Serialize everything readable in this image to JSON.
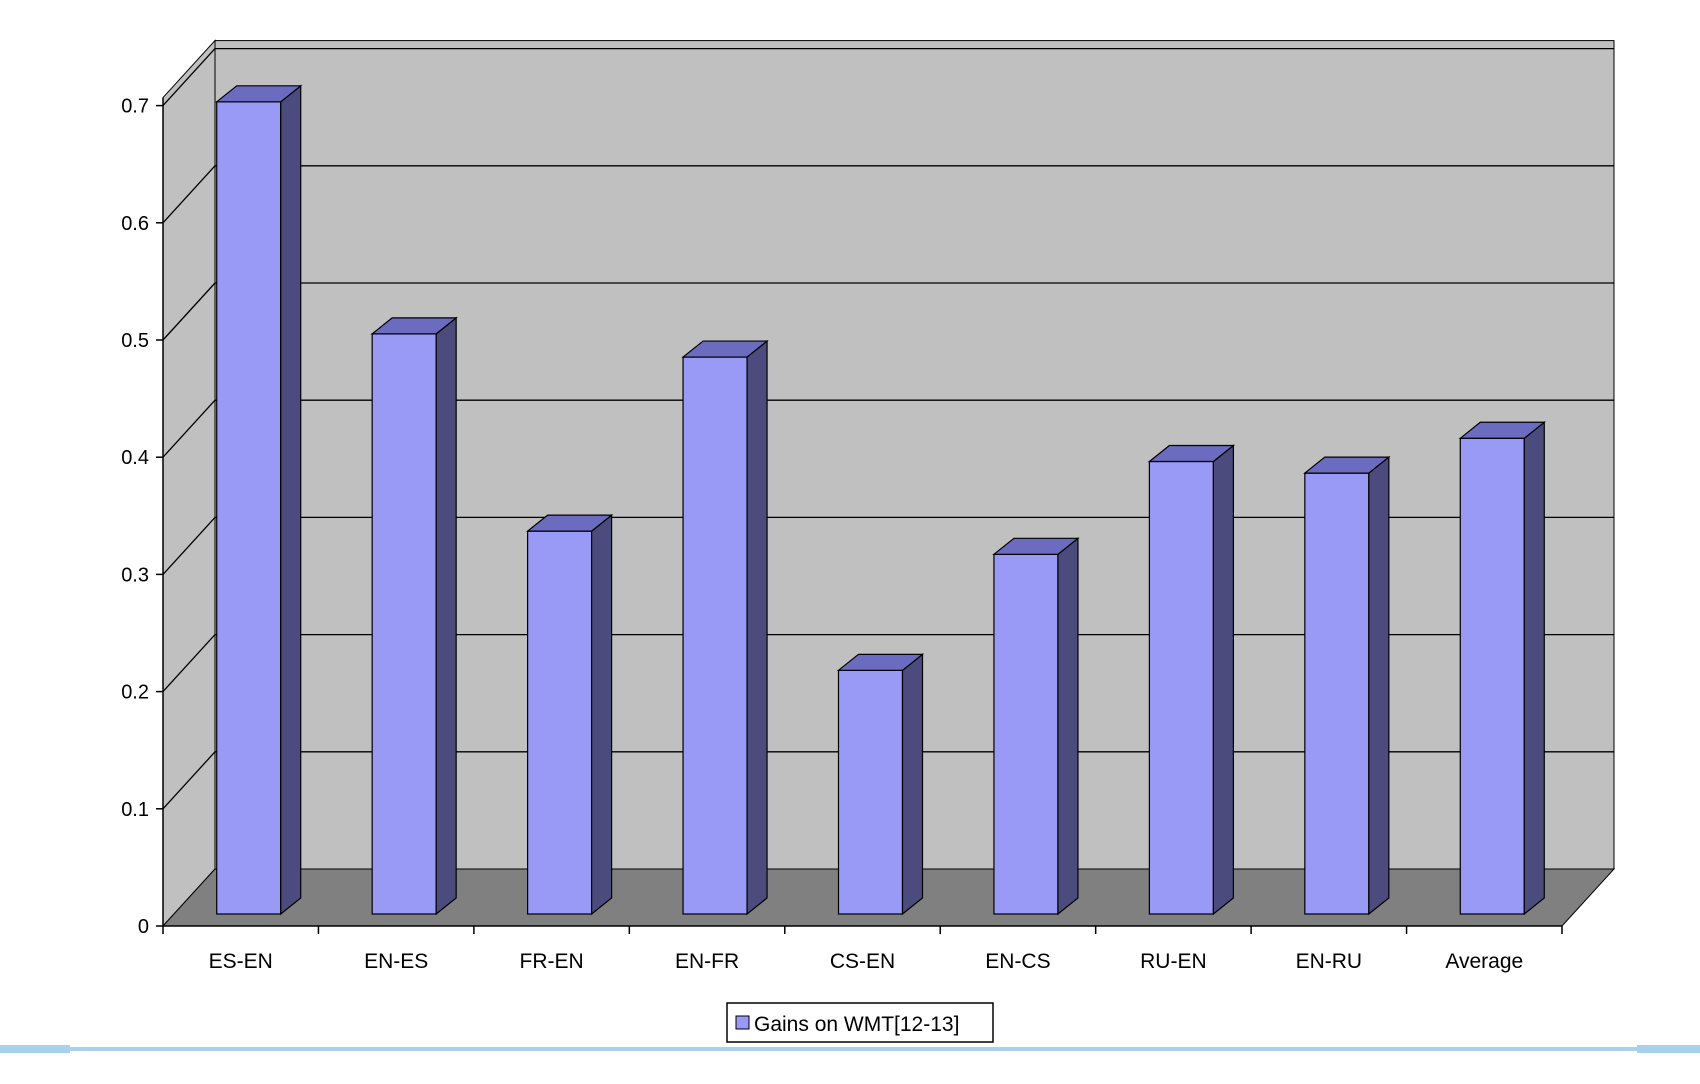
{
  "chart_data": {
    "type": "bar",
    "style": "3d",
    "categories": [
      "ES-EN",
      "EN-ES",
      "FR-EN",
      "EN-FR",
      "CS-EN",
      "EN-CS",
      "RU-EN",
      "EN-RU",
      "Average"
    ],
    "series": [
      {
        "name": "Gains on WMT[12-13]",
        "values": [
          0.7,
          0.5,
          0.33,
          0.48,
          0.21,
          0.31,
          0.39,
          0.38,
          0.41
        ]
      }
    ],
    "ylim": [
      0,
      0.7
    ],
    "yticks": [
      "0",
      "0.1",
      "0.2",
      "0.3",
      "0.4",
      "0.5",
      "0.6",
      "0.7"
    ],
    "grid": true,
    "legend_position": "bottom-center",
    "colors": {
      "bar_front": "#9999f6",
      "bar_side": "#4b4b7d",
      "bar_top": "#6b6bbf",
      "wall_back": "#c0c0c0",
      "wall_side": "#c0c0c0",
      "floor": "#808080"
    }
  }
}
